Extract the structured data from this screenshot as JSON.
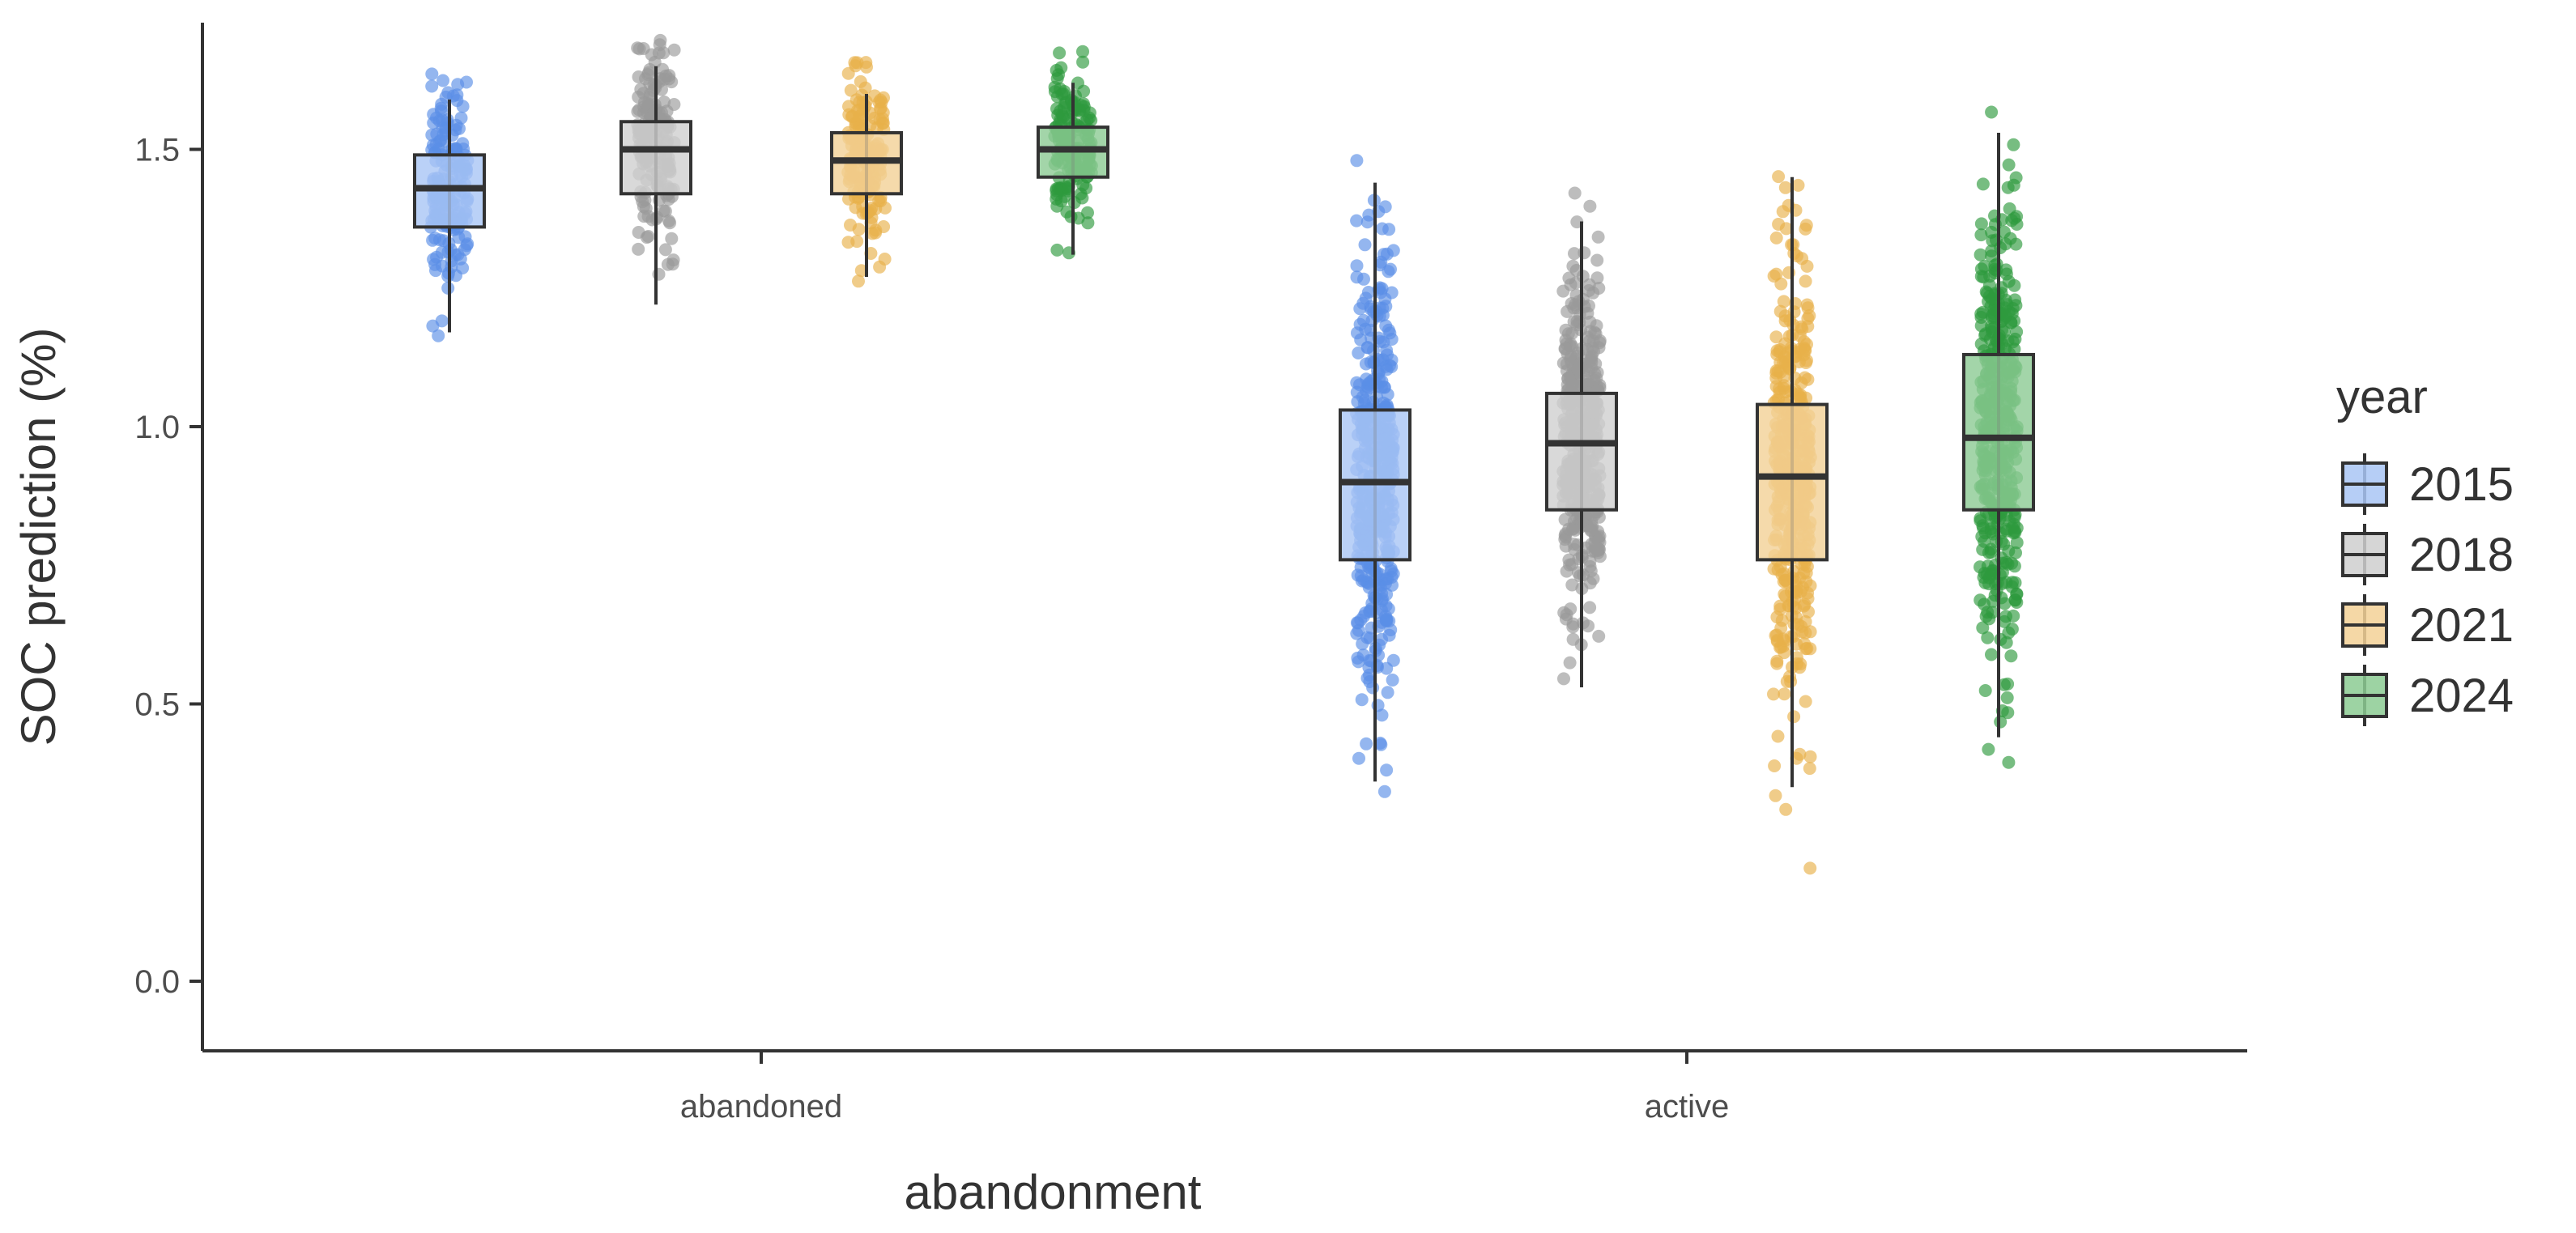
{
  "chart_data": {
    "type": "boxplot",
    "xlabel": "abandonment",
    "ylabel": "SOC prediction (%)",
    "ylim": [
      -0.08,
      1.72
    ],
    "y_ticks": [
      0.0,
      0.5,
      1.0,
      1.5
    ],
    "y_tick_labels": [
      "0.0",
      "0.5",
      "1.0",
      "1.5"
    ],
    "categories": [
      "abandoned",
      "active"
    ],
    "legend_title": "year",
    "legend_position": "right",
    "grid": false,
    "series": [
      {
        "name": "2015",
        "color": "#5b8fe6",
        "fill": "#a9c6f5",
        "boxes": [
          {
            "category": "abandoned",
            "whisker_low": 1.17,
            "q1": 1.36,
            "median": 1.43,
            "q3": 1.49,
            "whisker_high": 1.59
          },
          {
            "category": "active",
            "whisker_low": 0.36,
            "q1": 0.76,
            "median": 0.9,
            "q3": 1.03,
            "whisker_high": 1.44
          }
        ]
      },
      {
        "name": "2018",
        "color": "#9a9a9a",
        "fill": "#cfcfcf",
        "boxes": [
          {
            "category": "abandoned",
            "whisker_low": 1.22,
            "q1": 1.42,
            "median": 1.5,
            "q3": 1.55,
            "whisker_high": 1.65
          },
          {
            "category": "active",
            "whisker_low": 0.53,
            "q1": 0.85,
            "median": 0.97,
            "q3": 1.06,
            "whisker_high": 1.37
          }
        ]
      },
      {
        "name": "2021",
        "color": "#e8b04a",
        "fill": "#f3d196",
        "boxes": [
          {
            "category": "abandoned",
            "whisker_low": 1.27,
            "q1": 1.42,
            "median": 1.48,
            "q3": 1.53,
            "whisker_high": 1.6
          },
          {
            "category": "active",
            "whisker_low": 0.35,
            "q1": 0.76,
            "median": 0.91,
            "q3": 1.04,
            "whisker_high": 1.45
          }
        ]
      },
      {
        "name": "2024",
        "color": "#2e9a3e",
        "fill": "#8ccb93",
        "boxes": [
          {
            "category": "abandoned",
            "whisker_low": 1.31,
            "q1": 1.45,
            "median": 1.5,
            "q3": 1.54,
            "whisker_high": 1.62
          },
          {
            "category": "active",
            "whisker_low": 0.44,
            "q1": 0.85,
            "median": 0.98,
            "q3": 1.13,
            "whisker_high": 1.53
          }
        ]
      }
    ]
  }
}
